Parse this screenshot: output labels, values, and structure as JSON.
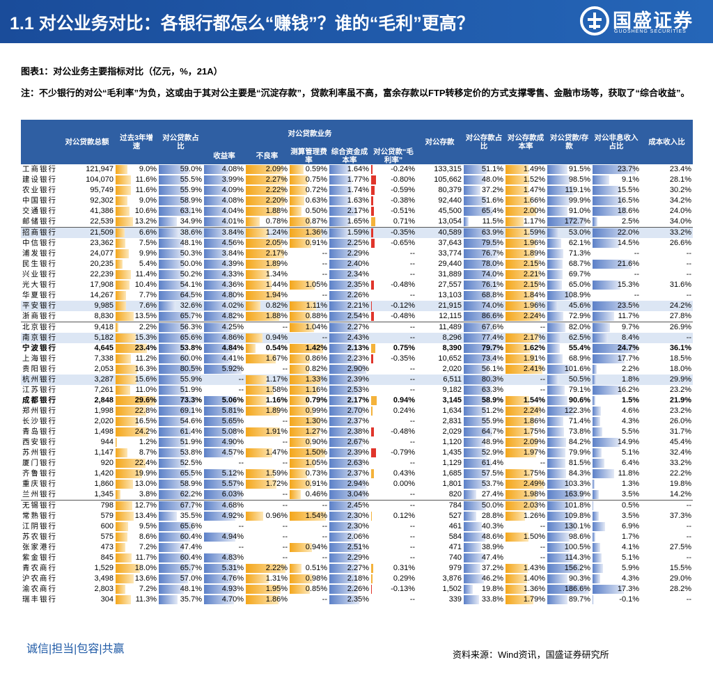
{
  "header": {
    "title": "1.1 对公业务对比：各银行都怎么“赚钱”？谁的“毛利”更高？",
    "logo_cn": "国盛证券",
    "logo_en": "GUOSHENG SECURITIES"
  },
  "caption": "图表1：对公业务主要指标对比（亿元，%，21A）",
  "note": "注：不少银行的对公“毛利率”为负，这或由于其对公主要是“沉淀存款”，贷款利率虽不高，富余存款以FTP转移定价的方式支撑零售、金融市场等，获取了“综合收益”。",
  "table": {
    "group": "对公贷款业务",
    "columns": [
      "对公贷款总额",
      "过去3年增速",
      "对公贷款占比",
      "收益率",
      "不良率",
      "测算管理费率",
      "综合资金成本率",
      "对公贷款“毛利率”",
      "对公存款",
      "对公存款占比",
      "对公存款成本率",
      "对公贷款/存款",
      "对公非息收入占比",
      "成本收入比"
    ],
    "rows": [
      [
        "工商银行",
        "121,947",
        "9.0%",
        "59.0%",
        "4.08%",
        "2.09%",
        "0.59%",
        "1.64%",
        "-0.24%",
        "133,315",
        "51.1%",
        "1.49%",
        "91.5%",
        "23.7%",
        "23.4%"
      ],
      [
        "建设银行",
        "104,070",
        "11.6%",
        "55.5%",
        "3.99%",
        "2.27%",
        "0.75%",
        "1.77%",
        "-0.80%",
        "105,662",
        "48.0%",
        "1.52%",
        "98.5%",
        "9.1%",
        "28.1%"
      ],
      [
        "农业银行",
        "95,749",
        "11.6%",
        "55.9%",
        "4.09%",
        "2.22%",
        "0.72%",
        "1.74%",
        "-0.59%",
        "80,379",
        "37.2%",
        "1.47%",
        "119.1%",
        "15.5%",
        "30.2%"
      ],
      [
        "中国银行",
        "92,302",
        "9.0%",
        "58.9%",
        "4.08%",
        "2.20%",
        "0.63%",
        "1.63%",
        "-0.38%",
        "92,440",
        "51.6%",
        "1.66%",
        "99.9%",
        "16.5%",
        "34.2%"
      ],
      [
        "交通银行",
        "41,386",
        "10.6%",
        "63.1%",
        "4.04%",
        "1.88%",
        "0.50%",
        "2.17%",
        "-0.51%",
        "45,500",
        "65.4%",
        "2.00%",
        "91.0%",
        "18.6%",
        "24.0%"
      ],
      [
        "邮储银行",
        "22,539",
        "13.2%",
        "34.9%",
        "4.01%",
        "0.78%",
        "0.87%",
        "1.65%",
        "0.71%",
        "13,054",
        "11.5%",
        "1.17%",
        "172.7%",
        "2.5%",
        "34.0%"
      ],
      [
        "招商银行",
        "21,509",
        "6.6%",
        "38.6%",
        "3.84%",
        "1.24%",
        "1.36%",
        "1.59%",
        "-0.35%",
        "40,589",
        "63.9%",
        "1.59%",
        "53.0%",
        "22.0%",
        "33.2%"
      ],
      [
        "中信银行",
        "23,362",
        "7.5%",
        "48.1%",
        "4.56%",
        "2.05%",
        "0.91%",
        "2.25%",
        "-0.65%",
        "37,643",
        "79.5%",
        "1.96%",
        "62.1%",
        "14.5%",
        "26.6%"
      ],
      [
        "浦发银行",
        "24,077",
        "9.9%",
        "50.3%",
        "3.84%",
        "2.17%",
        "--",
        "2.29%",
        "--",
        "33,774",
        "76.7%",
        "1.89%",
        "71.3%",
        "--",
        "--"
      ],
      [
        "民生银行",
        "20,235",
        "5.4%",
        "50.0%",
        "4.39%",
        "1.89%",
        "--",
        "2.40%",
        "--",
        "29,440",
        "78.0%",
        "2.15%",
        "68.7%",
        "21.6%",
        "--"
      ],
      [
        "兴业银行",
        "22,239",
        "11.4%",
        "50.2%",
        "4.33%",
        "1.34%",
        "--",
        "2.34%",
        "--",
        "31,889",
        "74.0%",
        "2.21%",
        "69.7%",
        "--",
        "--"
      ],
      [
        "光大银行",
        "17,908",
        "10.4%",
        "54.1%",
        "4.36%",
        "1.44%",
        "1.05%",
        "2.35%",
        "-0.48%",
        "27,557",
        "76.1%",
        "2.15%",
        "65.0%",
        "15.3%",
        "31.6%"
      ],
      [
        "华夏银行",
        "14,267",
        "7.7%",
        "64.5%",
        "4.80%",
        "1.94%",
        "--",
        "2.26%",
        "--",
        "13,103",
        "68.8%",
        "1.84%",
        "108.9%",
        "--",
        "--"
      ],
      [
        "平安银行",
        "9,985",
        "7.6%",
        "32.6%",
        "4.02%",
        "0.82%",
        "1.11%",
        "2.21%",
        "-0.12%",
        "21,915",
        "74.0%",
        "1.96%",
        "45.6%",
        "23.5%",
        "24.2%"
      ],
      [
        "浙商银行",
        "8,830",
        "13.5%",
        "65.7%",
        "4.82%",
        "1.88%",
        "0.88%",
        "2.54%",
        "-0.48%",
        "12,115",
        "86.6%",
        "2.24%",
        "72.9%",
        "11.7%",
        "27.8%"
      ],
      [
        "北京银行",
        "9,418",
        "2.2%",
        "56.3%",
        "4.25%",
        "--",
        "1.04%",
        "2.27%",
        "--",
        "11,489",
        "67.6%",
        "--",
        "82.0%",
        "9.7%",
        "26.9%"
      ],
      [
        "南京银行",
        "5,182",
        "15.3%",
        "65.6%",
        "4.86%",
        "0.94%",
        "--",
        "2.43%",
        "--",
        "8,296",
        "77.4%",
        "2.17%",
        "62.5%",
        "8.4%",
        "--"
      ],
      [
        "宁波银行",
        "4,645",
        "23.4%",
        "53.8%",
        "4.84%",
        "0.54%",
        "1.42%",
        "2.13%",
        "0.75%",
        "8,390",
        "79.7%",
        "1.62%",
        "55.4%",
        "24.7%",
        "36.1%"
      ],
      [
        "上海银行",
        "7,338",
        "11.2%",
        "60.0%",
        "4.41%",
        "1.67%",
        "0.86%",
        "2.23%",
        "-0.35%",
        "10,652",
        "73.4%",
        "1.91%",
        "68.9%",
        "17.7%",
        "18.5%"
      ],
      [
        "贵阳银行",
        "2,053",
        "16.3%",
        "80.5%",
        "5.92%",
        "--",
        "0.82%",
        "2.90%",
        "--",
        "2,020",
        "56.1%",
        "2.41%",
        "101.6%",
        "2.2%",
        "18.0%"
      ],
      [
        "杭州银行",
        "3,287",
        "15.6%",
        "55.9%",
        "--",
        "1.17%",
        "1.33%",
        "2.39%",
        "--",
        "6,511",
        "80.3%",
        "--",
        "50.5%",
        "1.8%",
        "29.9%"
      ],
      [
        "江苏银行",
        "7,261",
        "11.0%",
        "51.9%",
        "--",
        "1.58%",
        "1.16%",
        "2.53%",
        "--",
        "9,182",
        "63.3%",
        "--",
        "79.1%",
        "16.2%",
        "23.2%"
      ],
      [
        "成都银行",
        "2,848",
        "29.6%",
        "73.3%",
        "5.06%",
        "1.16%",
        "0.79%",
        "2.17%",
        "0.94%",
        "3,145",
        "58.9%",
        "1.54%",
        "90.6%",
        "1.5%",
        "21.9%"
      ],
      [
        "郑州银行",
        "1,998",
        "22.8%",
        "69.1%",
        "5.81%",
        "1.89%",
        "0.99%",
        "2.70%",
        "0.24%",
        "1,634",
        "51.2%",
        "2.24%",
        "122.3%",
        "4.6%",
        "23.2%"
      ],
      [
        "长沙银行",
        "2,020",
        "16.5%",
        "54.6%",
        "5.65%",
        "--",
        "1.30%",
        "2.37%",
        "--",
        "2,831",
        "55.9%",
        "1.86%",
        "71.4%",
        "4.3%",
        "26.0%"
      ],
      [
        "青岛银行",
        "1,498",
        "24.2%",
        "61.4%",
        "5.08%",
        "1.91%",
        "1.27%",
        "2.38%",
        "-0.48%",
        "2,029",
        "64.7%",
        "1.75%",
        "73.8%",
        "5.5%",
        "31.7%"
      ],
      [
        "西安银行",
        "944",
        "1.2%",
        "51.9%",
        "4.90%",
        "--",
        "0.90%",
        "2.67%",
        "--",
        "1,120",
        "48.9%",
        "2.09%",
        "84.2%",
        "14.9%",
        "45.4%"
      ],
      [
        "苏州银行",
        "1,147",
        "8.7%",
        "53.8%",
        "4.57%",
        "1.47%",
        "1.50%",
        "2.39%",
        "-0.79%",
        "1,435",
        "52.9%",
        "1.97%",
        "79.9%",
        "5.1%",
        "32.4%"
      ],
      [
        "厦门银行",
        "920",
        "22.4%",
        "52.5%",
        "--",
        "--",
        "1.05%",
        "2.63%",
        "--",
        "1,129",
        "61.4%",
        "--",
        "81.5%",
        "6.4%",
        "33.2%"
      ],
      [
        "齐鲁银行",
        "1,420",
        "19.9%",
        "65.5%",
        "5.12%",
        "1.59%",
        "0.73%",
        "2.37%",
        "0.43%",
        "1,685",
        "57.5%",
        "1.75%",
        "84.3%",
        "11.8%",
        "22.2%"
      ],
      [
        "重庆银行",
        "1,860",
        "13.0%",
        "58.9%",
        "5.57%",
        "1.72%",
        "0.91%",
        "2.94%",
        "0.00%",
        "1,801",
        "53.7%",
        "2.49%",
        "103.3%",
        "1.3%",
        "19.8%"
      ],
      [
        "兰州银行",
        "1,345",
        "3.8%",
        "62.2%",
        "6.03%",
        "--",
        "0.46%",
        "3.04%",
        "--",
        "820",
        "27.4%",
        "1.98%",
        "163.9%",
        "3.5%",
        "14.2%"
      ],
      [
        "无锡银行",
        "798",
        "12.7%",
        "67.7%",
        "4.68%",
        "--",
        "--",
        "2.45%",
        "--",
        "784",
        "50.0%",
        "2.03%",
        "101.8%",
        "0.5%",
        "--"
      ],
      [
        "常熟银行",
        "579",
        "13.4%",
        "35.5%",
        "4.92%",
        "0.96%",
        "1.54%",
        "2.30%",
        "0.12%",
        "527",
        "28.8%",
        "1.26%",
        "109.8%",
        "3.5%",
        "37.3%"
      ],
      [
        "江阴银行",
        "600",
        "9.5%",
        "65.6%",
        "--",
        "--",
        "--",
        "2.30%",
        "--",
        "461",
        "40.3%",
        "--",
        "130.1%",
        "6.9%",
        "--"
      ],
      [
        "苏农银行",
        "575",
        "8.6%",
        "60.4%",
        "4.94%",
        "--",
        "--",
        "2.06%",
        "--",
        "584",
        "48.6%",
        "1.50%",
        "98.6%",
        "1.7%",
        "--"
      ],
      [
        "张家港行",
        "473",
        "7.2%",
        "47.4%",
        "--",
        "--",
        "0.94%",
        "2.51%",
        "--",
        "471",
        "38.9%",
        "--",
        "100.5%",
        "4.1%",
        "27.5%"
      ],
      [
        "紫金银行",
        "845",
        "11.7%",
        "60.4%",
        "4.83%",
        "--",
        "--",
        "2.29%",
        "--",
        "740",
        "47.4%",
        "--",
        "114.3%",
        "5.1%",
        "--"
      ],
      [
        "青农商行",
        "1,529",
        "18.0%",
        "65.7%",
        "5.31%",
        "2.22%",
        "0.51%",
        "2.27%",
        "0.31%",
        "979",
        "37.2%",
        "1.43%",
        "156.2%",
        "5.9%",
        "15.5%"
      ],
      [
        "沪农商行",
        "3,498",
        "13.6%",
        "57.0%",
        "4.76%",
        "1.31%",
        "0.98%",
        "2.18%",
        "0.29%",
        "3,876",
        "46.2%",
        "1.40%",
        "90.3%",
        "4.3%",
        "29.0%"
      ],
      [
        "渝农商行",
        "2,803",
        "7.2%",
        "48.1%",
        "4.93%",
        "1.95%",
        "0.85%",
        "2.26%",
        "-0.13%",
        "1,502",
        "19.8%",
        "1.36%",
        "186.6%",
        "17.3%",
        "28.2%"
      ],
      [
        "瑞丰银行",
        "304",
        "11.3%",
        "35.7%",
        "4.70%",
        "1.86%",
        "--",
        "2.35%",
        "--",
        "339",
        "33.8%",
        "1.79%",
        "89.7%",
        "-0.1%",
        "--"
      ]
    ]
  },
  "footer": {
    "motto": "诚信|担当|包容|共赢",
    "source": "资料来源：Wind资讯，国盛证券研究所"
  }
}
